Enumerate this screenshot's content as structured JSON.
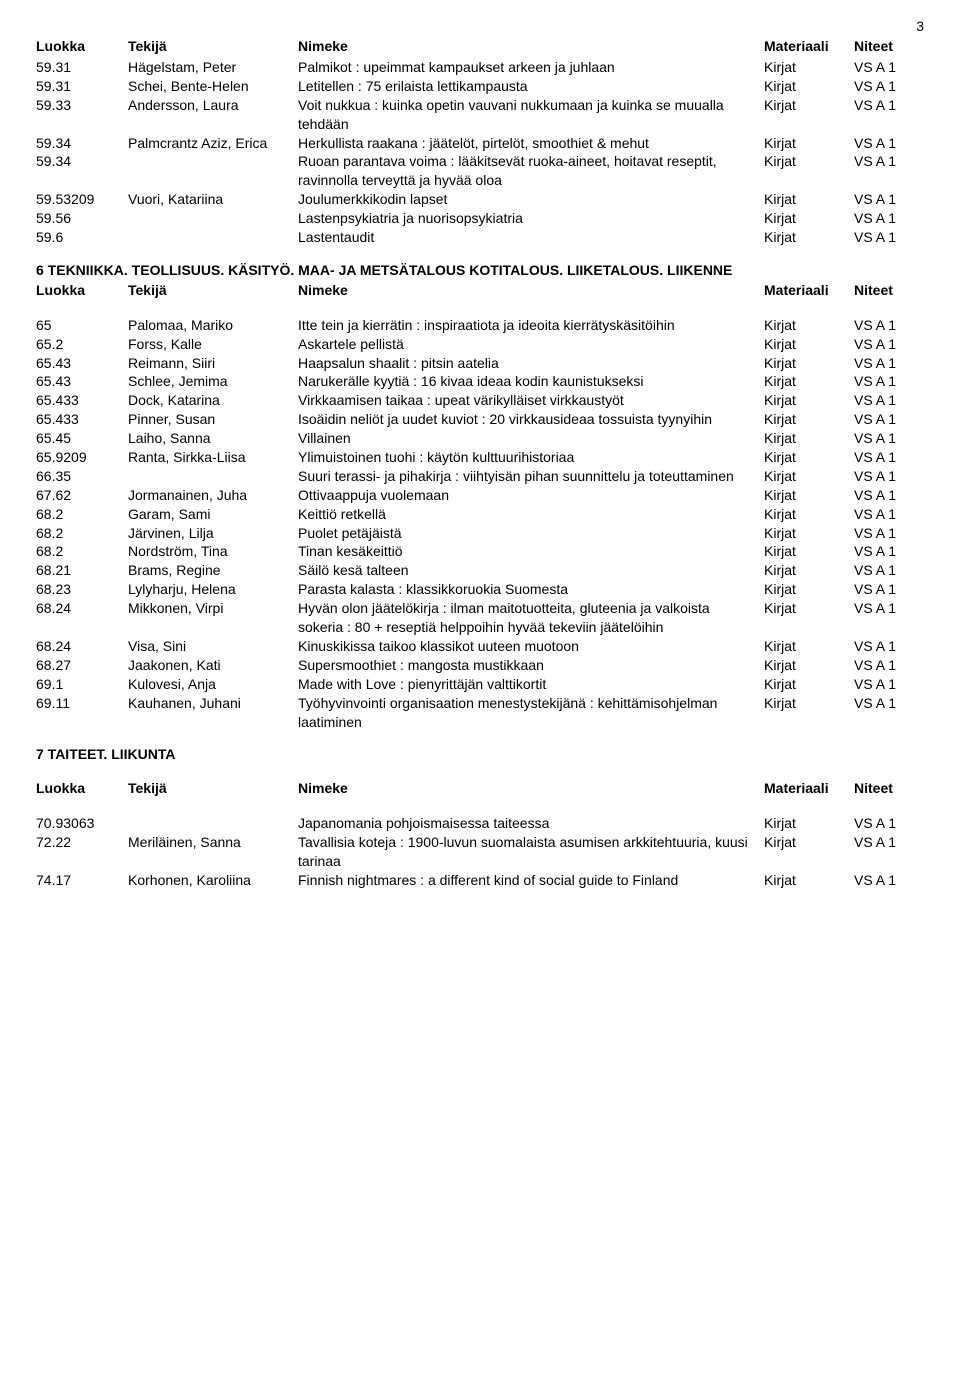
{
  "page_number": "3",
  "header": {
    "col_class": "Luokka",
    "col_author": "Tekijä",
    "col_title": "Nimeke",
    "col_material": "Materiaali",
    "col_volume": "Niteet"
  },
  "section1_rows": [
    {
      "class": "59.31",
      "author": "Hägelstam, Peter",
      "title": "Palmikot : upeimmat kampaukset arkeen ja juhlaan",
      "material": "Kirjat",
      "volume": "VS A 1"
    },
    {
      "class": "59.31",
      "author": "Schei, Bente-Helen",
      "title": "Letitellen : 75 erilaista lettikampausta",
      "material": "Kirjat",
      "volume": "VS A 1"
    },
    {
      "class": "59.33",
      "author": "Andersson, Laura",
      "title": "Voit nukkua : kuinka opetin vauvani nukkumaan ja kuinka se muualla tehdään",
      "material": "Kirjat",
      "volume": "VS A 1"
    },
    {
      "class": "59.34",
      "author": "Palmcrantz Aziz, Erica",
      "title": "Herkullista raakana : jäätelöt, pirtelöt, smoothiet & mehut",
      "material": "Kirjat",
      "volume": "VS A 1"
    },
    {
      "class": "59.34",
      "author": "",
      "title": "Ruoan parantava voima : lääkitsevät ruoka-aineet, hoitavat reseptit, ravinnolla terveyttä ja hyvää oloa",
      "material": "Kirjat",
      "volume": "VS A 1"
    },
    {
      "class": "59.53209",
      "author": "Vuori, Katariina",
      "title": "Joulumerkkikodin lapset",
      "material": "Kirjat",
      "volume": "VS A 1"
    },
    {
      "class": "59.56",
      "author": "",
      "title": "Lastenpsykiatria ja nuorisopsykiatria",
      "material": "Kirjat",
      "volume": "VS A 1"
    },
    {
      "class": "59.6",
      "author": "",
      "title": "Lastentaudit",
      "material": "Kirjat",
      "volume": "VS A 1"
    }
  ],
  "section2_title": "6 TEKNIIKKA. TEOLLISUUS. KÄSITYÖ. MAA- JA METSÄTALOUS KOTITALOUS. LIIKETALOUS. LIIKENNE",
  "section2_rows": [
    {
      "class": "65",
      "author": "Palomaa, Mariko",
      "title": "Itte tein ja kierrätin : inspiraatiota ja ideoita kierrätyskäsitöihin",
      "material": "Kirjat",
      "volume": "VS A 1"
    },
    {
      "class": "65.2",
      "author": "Forss, Kalle",
      "title": "Askartele pellistä",
      "material": "Kirjat",
      "volume": "VS A 1"
    },
    {
      "class": "65.43",
      "author": "Reimann, Siiri",
      "title": "Haapsalun shaalit : pitsin aatelia",
      "material": "Kirjat",
      "volume": "VS A 1"
    },
    {
      "class": "65.43",
      "author": "Schlee, Jemima",
      "title": "Narukerälle kyytiä : 16 kivaa ideaa kodin kaunistukseksi",
      "material": "Kirjat",
      "volume": "VS A 1"
    },
    {
      "class": "65.433",
      "author": "Dock, Katarina",
      "title": "Virkkaamisen taikaa : upeat värikylläiset virkkaustyöt",
      "material": "Kirjat",
      "volume": "VS A 1"
    },
    {
      "class": "65.433",
      "author": "Pinner, Susan",
      "title": "Isoäidin neliöt ja uudet kuviot : 20 virkkausideaa tossuista tyynyihin",
      "material": "Kirjat",
      "volume": "VS A 1"
    },
    {
      "class": "65.45",
      "author": "Laiho, Sanna",
      "title": "Villainen",
      "material": "Kirjat",
      "volume": "VS A 1"
    },
    {
      "class": "65.9209",
      "author": "Ranta, Sirkka-Liisa",
      "title": "Ylimuistoinen tuohi : käytön kulttuurihistoriaa",
      "material": "Kirjat",
      "volume": "VS A 1"
    },
    {
      "class": "66.35",
      "author": "",
      "title": "Suuri terassi- ja pihakirja : viihtyisän pihan suunnittelu ja toteuttaminen",
      "material": "Kirjat",
      "volume": "VS A 1"
    },
    {
      "class": "67.62",
      "author": "Jormanainen, Juha",
      "title": "Ottivaappuja vuolemaan",
      "material": "Kirjat",
      "volume": "VS A 1"
    },
    {
      "class": "68.2",
      "author": "Garam, Sami",
      "title": "Keittiö retkellä",
      "material": "Kirjat",
      "volume": "VS A 1"
    },
    {
      "class": "68.2",
      "author": "Järvinen, Lilja",
      "title": "Puolet petäjäistä",
      "material": "Kirjat",
      "volume": "VS A 1"
    },
    {
      "class": "68.2",
      "author": "Nordström, Tina",
      "title": "Tinan kesäkeittiö",
      "material": "Kirjat",
      "volume": "VS A 1"
    },
    {
      "class": "68.21",
      "author": "Brams, Regine",
      "title": "Säilö kesä talteen",
      "material": "Kirjat",
      "volume": "VS A 1"
    },
    {
      "class": "68.23",
      "author": "Lylyharju, Helena",
      "title": "Parasta kalasta : klassikkoruokia Suomesta",
      "material": "Kirjat",
      "volume": "VS A 1"
    },
    {
      "class": "68.24",
      "author": "Mikkonen, Virpi",
      "title": "Hyvän olon jäätelökirja : ilman maitotuotteita, gluteenia ja valkoista sokeria : 80 + reseptiä helppoihin hyvää tekeviin jäätelöihin",
      "material": "Kirjat",
      "volume": "VS A 1"
    },
    {
      "class": "68.24",
      "author": "Visa, Sini",
      "title": "Kinuskikissa taikoo klassikot uuteen muotoon",
      "material": "Kirjat",
      "volume": "VS A 1"
    },
    {
      "class": "68.27",
      "author": "Jaakonen, Kati",
      "title": "Supersmoothiet : mangosta mustikkaan",
      "material": "Kirjat",
      "volume": "VS A 1"
    },
    {
      "class": "69.1",
      "author": "Kulovesi, Anja",
      "title": "Made with Love : pienyrittäjän valttikortit",
      "material": "Kirjat",
      "volume": "VS A 1"
    },
    {
      "class": "69.11",
      "author": "Kauhanen, Juhani",
      "title": "Työhyvinvointi organisaation menestystekijänä : kehittämisohjelman laatiminen",
      "material": "Kirjat",
      "volume": "VS A 1"
    }
  ],
  "section3_title": "7 TAITEET. LIIKUNTA",
  "section3_rows": [
    {
      "class": "70.93063",
      "author": "",
      "title": "Japanomania pohjoismaisessa taiteessa",
      "material": "Kirjat",
      "volume": "VS A 1"
    },
    {
      "class": "72.22",
      "author": "Meriläinen, Sanna",
      "title": "Tavallisia koteja : 1900-luvun suomalaista asumisen arkkitehtuuria, kuusi tarinaa",
      "material": "Kirjat",
      "volume": "VS A 1"
    },
    {
      "class": "74.17",
      "author": "Korhonen, Karoliina",
      "title": "Finnish nightmares : a different kind of social guide to Finland",
      "material": "Kirjat",
      "volume": "VS A 1"
    }
  ]
}
